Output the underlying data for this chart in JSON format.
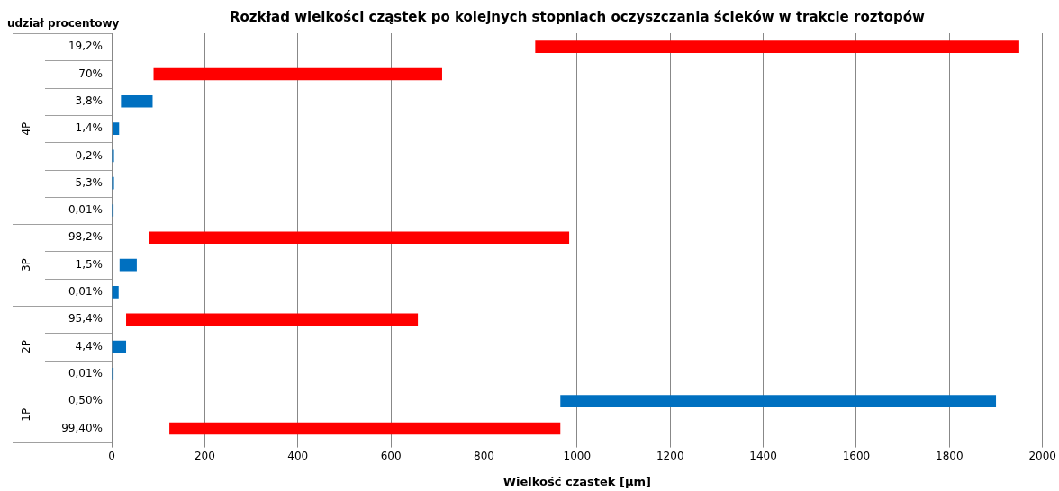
{
  "chart_data": {
    "type": "bar",
    "orientation": "horizontal",
    "title": "Rozkład wielkości cząstek po kolejnych stopniach oczyszczania ścieków w trakcie roztopów",
    "xlabel": "Wielkość czastek [µm]",
    "ylabel": "udział procentowy",
    "categories": [
      "19,2%",
      "70%",
      "3,8%",
      "1,4%",
      "0,2%",
      "5,3%",
      "0,01%",
      "98,2%",
      "1,5%",
      "0,01%",
      "95,4%",
      "4,4%",
      "0,01%",
      "0,50%",
      "99,40%"
    ],
    "base": [
      910,
      90,
      20,
      2,
      0,
      0,
      0,
      81,
      17,
      0,
      31,
      0,
      0,
      964,
      124
    ],
    "values": [
      1040,
      620,
      68,
      14,
      5,
      5,
      4,
      902,
      37,
      15,
      627,
      31,
      4,
      936,
      840
    ],
    "colors": [
      "#ff0000",
      "#ff0000",
      "#0070c0",
      "#0070c0",
      "#0070c0",
      "#0070c0",
      "#0070c0",
      "#ff0000",
      "#0070c0",
      "#0070c0",
      "#ff0000",
      "#0070c0",
      "#0070c0",
      "#0070c0",
      "#ff0000"
    ],
    "xlim": [
      0,
      2000
    ],
    "xticks": [
      0,
      200,
      400,
      600,
      800,
      1000,
      1200,
      1400,
      1600,
      1800,
      2000
    ],
    "grid": "x",
    "legend": false,
    "annotations": [
      "4P",
      "3P",
      "2P",
      "1P"
    ]
  }
}
